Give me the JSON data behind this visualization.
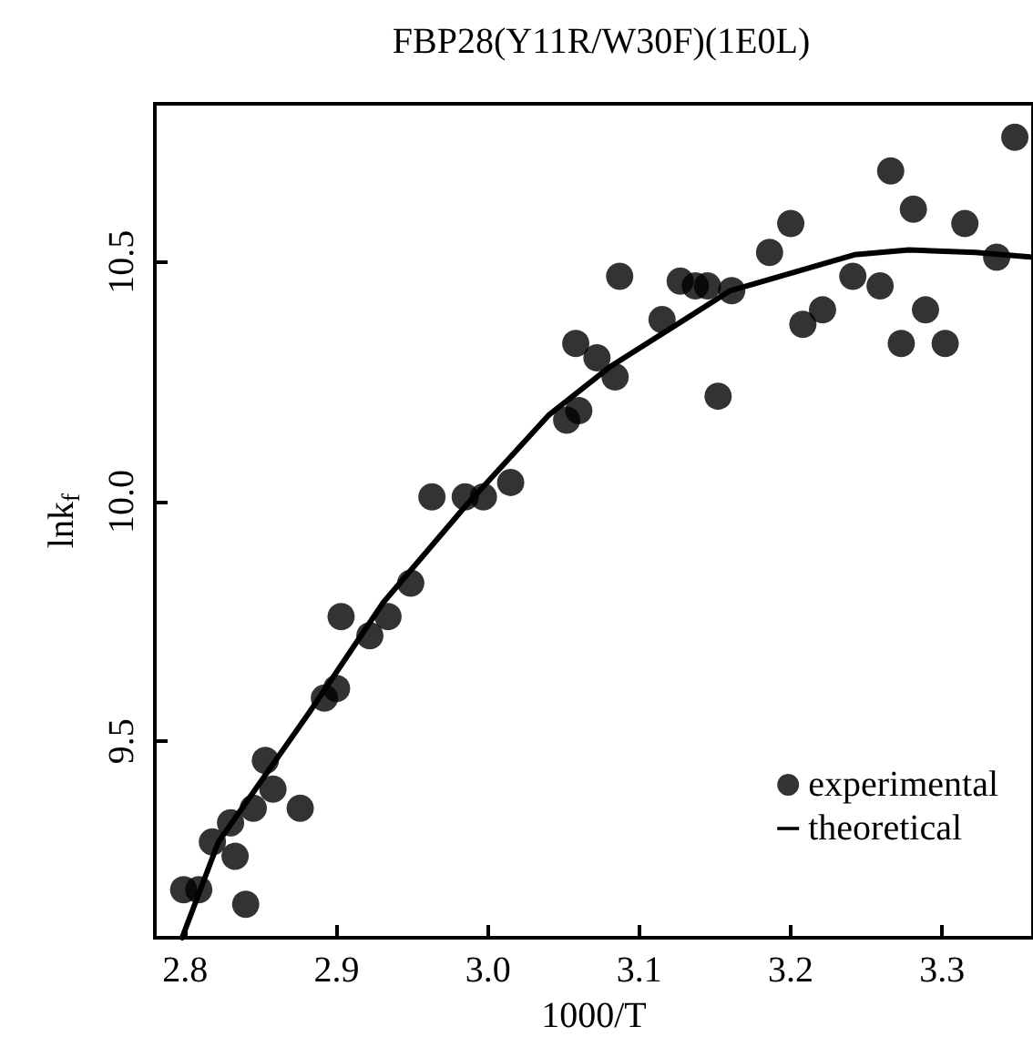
{
  "chart_data": {
    "type": "scatter",
    "title": "FBP28(Y11R/W30F)(1E0L)",
    "xlabel": "1000/T",
    "ylabel": "lnk$_{f}$",
    "xlim": [
      2.78,
      3.36
    ],
    "ylim": [
      9.09,
      10.83
    ],
    "xticks": [
      2.8,
      2.9,
      {
        "value": 3.0,
        "label": "3.0"
      },
      3.1,
      3.2,
      3.3
    ],
    "yticks": [
      9.5,
      {
        "value": 10.0,
        "label": "10.0"
      },
      10.5
    ],
    "grid": false,
    "legend": "bottom right",
    "series": [
      {
        "name": "experimental",
        "marker": "circle",
        "color": "#000000",
        "x": [
          2.799,
          2.809,
          2.84,
          2.818,
          2.83,
          2.833,
          2.845,
          2.853,
          2.858,
          2.876,
          2.892,
          2.9,
          2.903,
          2.922,
          2.934,
          2.949,
          2.963,
          2.985,
          2.997,
          3.015,
          3.052,
          3.058,
          3.06,
          3.072,
          3.084,
          3.087,
          3.115,
          3.127,
          3.137,
          3.145,
          3.152,
          3.161,
          3.186,
          3.2,
          3.208,
          3.221,
          3.241,
          3.259,
          3.266,
          3.273,
          3.281,
          3.289,
          3.302,
          3.315,
          3.336,
          3.348
        ],
        "values": [
          9.19,
          9.19,
          9.16,
          9.29,
          9.33,
          9.26,
          9.36,
          9.46,
          9.4,
          9.36,
          9.59,
          9.61,
          9.76,
          9.72,
          9.76,
          9.83,
          10.01,
          10.01,
          10.01,
          10.04,
          10.17,
          10.33,
          10.19,
          10.3,
          10.26,
          10.47,
          10.38,
          10.46,
          10.45,
          10.45,
          10.22,
          10.44,
          10.52,
          10.58,
          10.37,
          10.4,
          10.47,
          10.45,
          10.69,
          10.33,
          10.61,
          10.4,
          10.33,
          10.58,
          10.51,
          10.76
        ]
      },
      {
        "name": "theoretical",
        "type": "line",
        "marker": "none",
        "line_style": "solid",
        "color": "#000000",
        "x": [
          2.798,
          2.822,
          2.882,
          2.931,
          2.985,
          3.04,
          3.08,
          3.16,
          3.242,
          3.278,
          3.322,
          3.36
        ],
        "values": [
          9.09,
          9.29,
          9.56,
          9.79,
          9.99,
          10.18,
          10.28,
          10.44,
          10.515,
          10.525,
          10.52,
          10.51
        ]
      }
    ]
  }
}
